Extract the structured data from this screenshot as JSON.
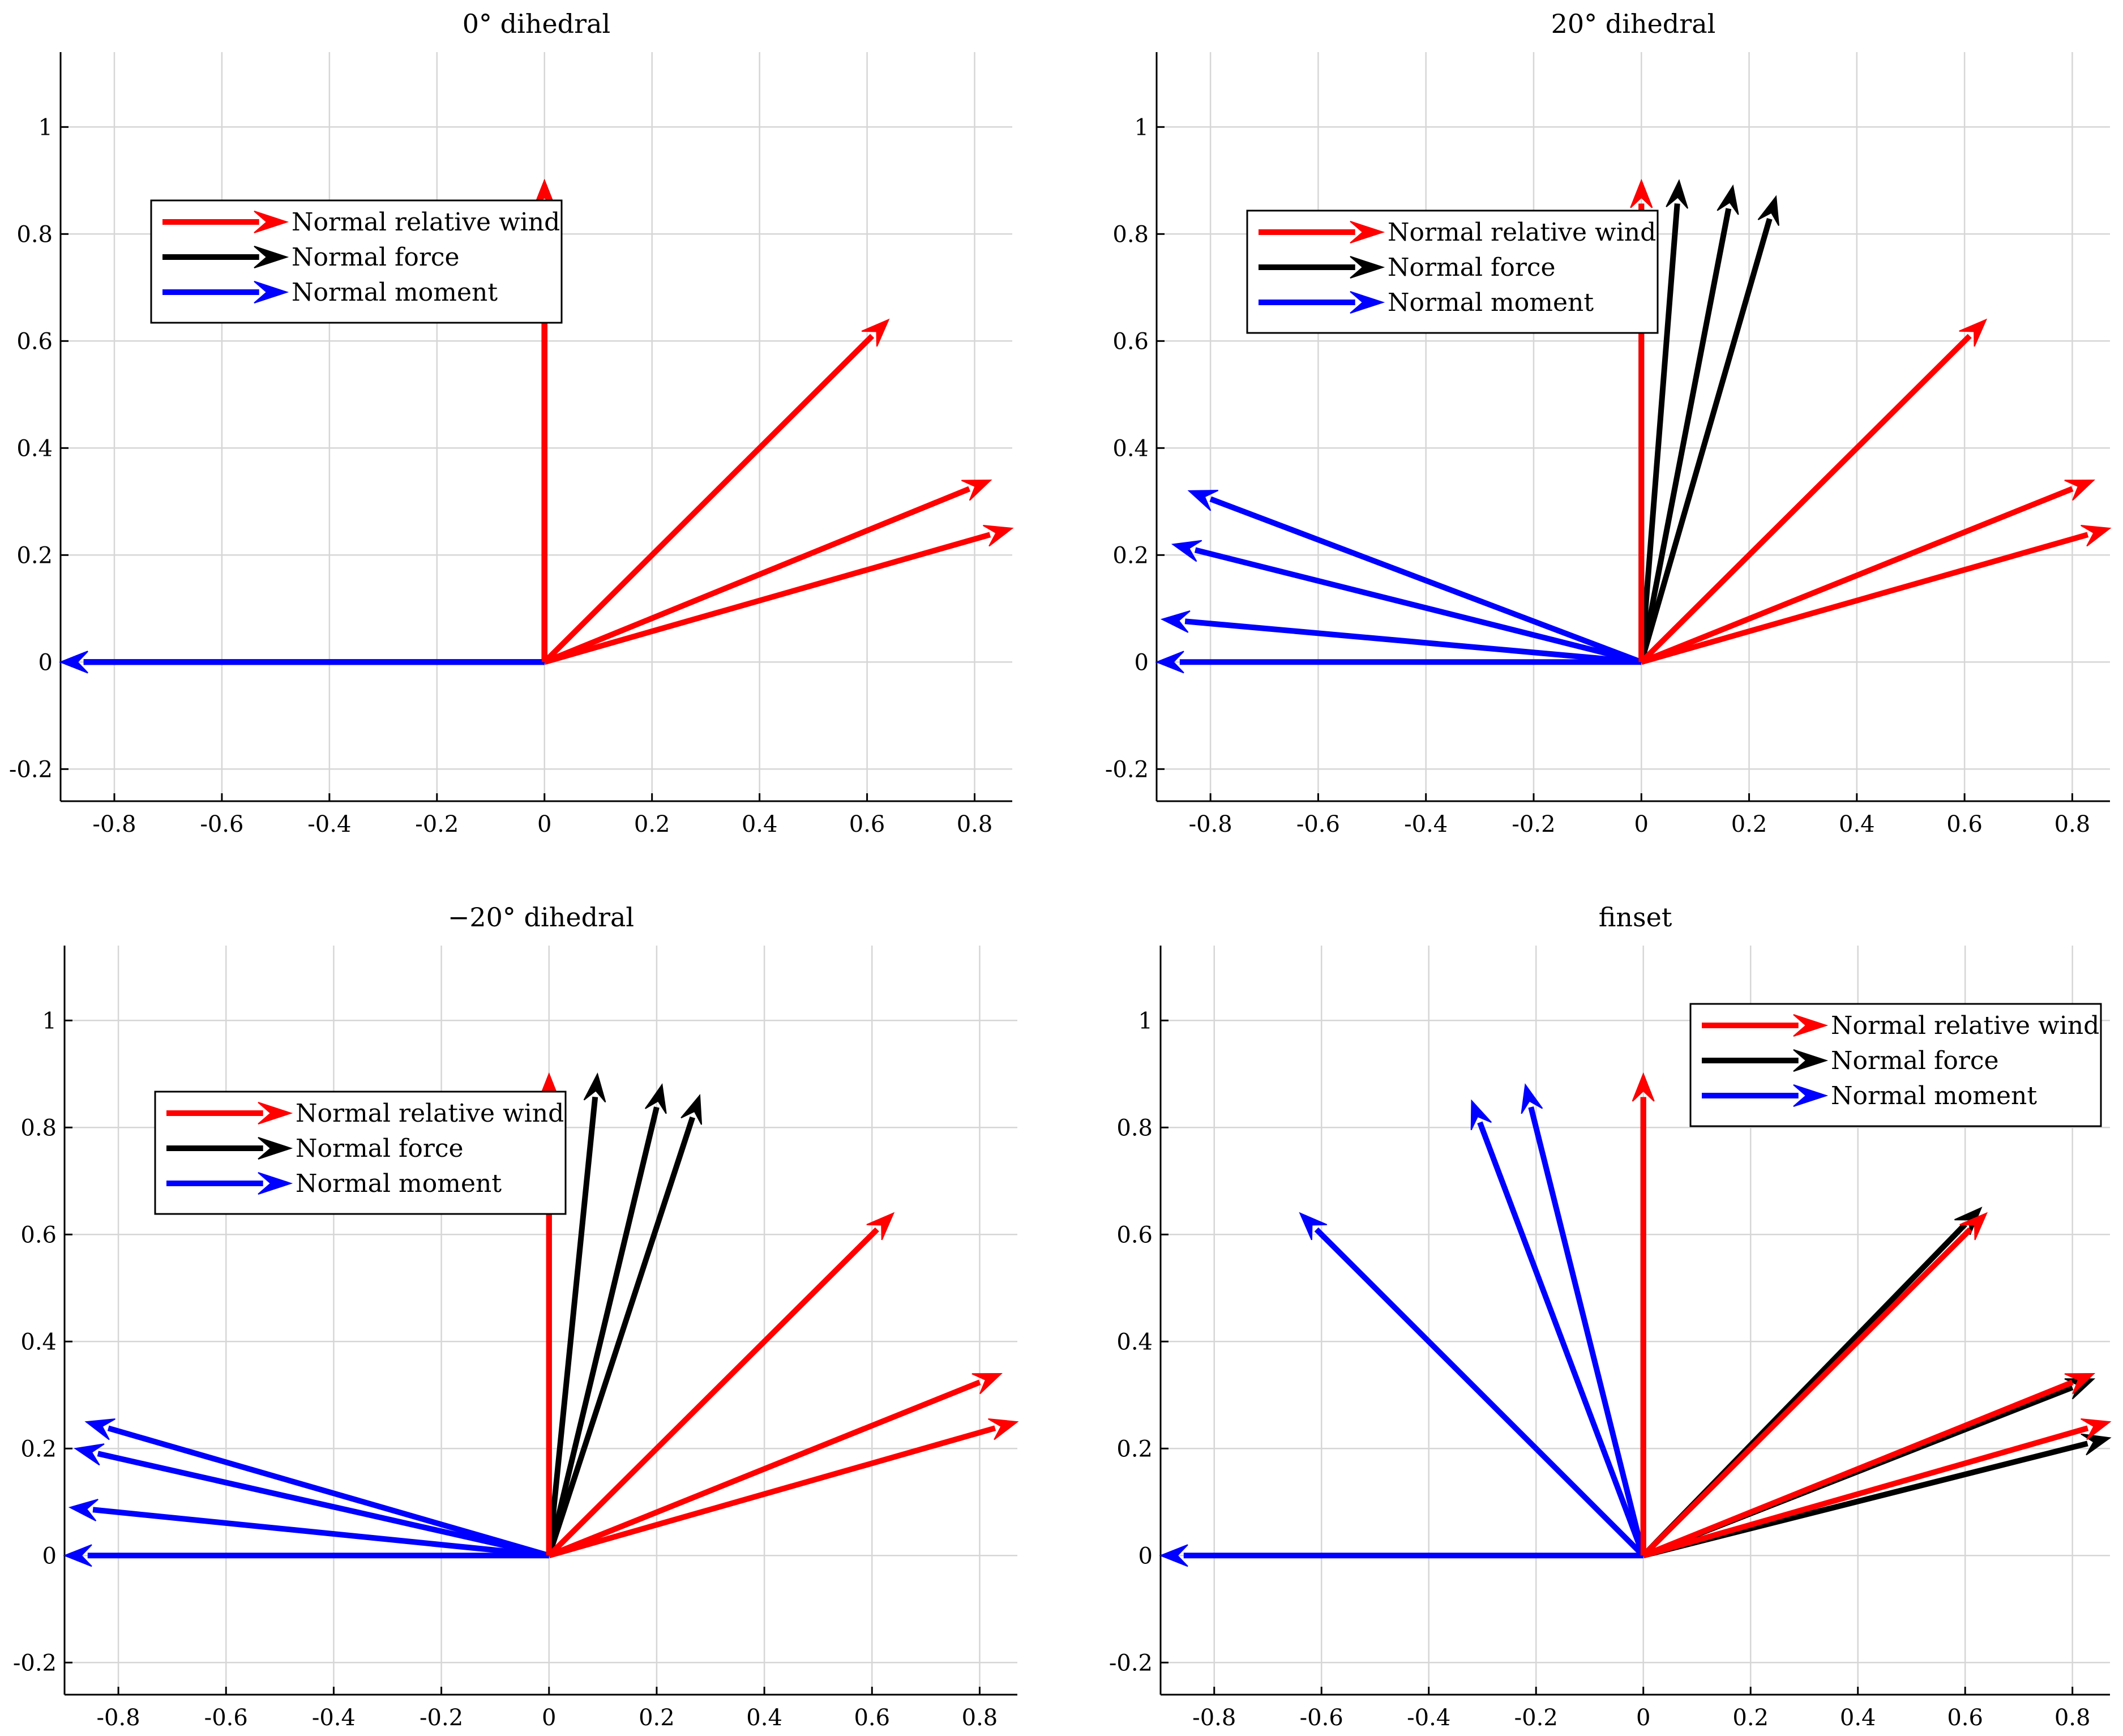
{
  "figure": {
    "background": "#ffffff"
  },
  "colors": {
    "relative_wind": "#ff0000",
    "force": "#000000",
    "moment": "#0000ff",
    "grid": "#d6d6d6"
  },
  "chart_data": [
    {
      "type": "quiver",
      "title": "0° dihedral",
      "xlim": [
        -0.9,
        0.87
      ],
      "ylim": [
        -0.26,
        1.14
      ],
      "xticks": [
        -0.8,
        -0.6,
        -0.4,
        -0.2,
        0,
        0.2,
        0.4,
        0.6,
        0.8
      ],
      "yticks": [
        -0.2,
        0,
        0.2,
        0.4,
        0.6,
        0.8,
        1
      ],
      "grid": true,
      "legend": {
        "location": "top-left",
        "entries": [
          "Normal relative wind",
          "Normal force",
          "Normal moment"
        ]
      },
      "series": [
        {
          "name": "Normal relative wind",
          "color": "#ff0000",
          "vectors": [
            [
              0,
              0.9
            ],
            [
              0.64,
              0.64
            ],
            [
              0.83,
              0.34
            ],
            [
              0.87,
              0.25
            ]
          ]
        },
        {
          "name": "Normal force",
          "color": "#000000",
          "vectors": [
            [
              0,
              0.9
            ],
            [
              0,
              0.9
            ],
            [
              0,
              0.9
            ],
            [
              0,
              0.9
            ]
          ]
        },
        {
          "name": "Normal moment",
          "color": "#0000ff",
          "vectors": [
            [
              -0.9,
              0
            ],
            [
              -0.9,
              0
            ],
            [
              -0.9,
              0
            ],
            [
              -0.9,
              0
            ]
          ]
        }
      ]
    },
    {
      "type": "quiver",
      "title": "20° dihedral",
      "xlim": [
        -0.9,
        0.87
      ],
      "ylim": [
        -0.26,
        1.14
      ],
      "xticks": [
        -0.8,
        -0.6,
        -0.4,
        -0.2,
        0,
        0.2,
        0.4,
        0.6,
        0.8
      ],
      "yticks": [
        -0.2,
        0,
        0.2,
        0.4,
        0.6,
        0.8,
        1
      ],
      "grid": true,
      "legend": {
        "location": "top-left",
        "entries": [
          "Normal relative wind",
          "Normal force",
          "Normal moment"
        ]
      },
      "series": [
        {
          "name": "Normal relative wind",
          "color": "#ff0000",
          "vectors": [
            [
              0,
              0.9
            ],
            [
              0.64,
              0.64
            ],
            [
              0.84,
              0.34
            ],
            [
              0.87,
              0.25
            ]
          ]
        },
        {
          "name": "Normal force",
          "color": "#000000",
          "vectors": [
            [
              0,
              0.9
            ],
            [
              0.07,
              0.9
            ],
            [
              0.17,
              0.89
            ],
            [
              0.25,
              0.87
            ]
          ]
        },
        {
          "name": "Normal moment",
          "color": "#0000ff",
          "vectors": [
            [
              -0.9,
              0
            ],
            [
              -0.89,
              0.08
            ],
            [
              -0.87,
              0.22
            ],
            [
              -0.84,
              0.32
            ]
          ]
        }
      ]
    },
    {
      "type": "quiver",
      "title": "−20° dihedral",
      "xlim": [
        -0.9,
        0.87
      ],
      "ylim": [
        -0.26,
        1.14
      ],
      "xticks": [
        -0.8,
        -0.6,
        -0.4,
        -0.2,
        0,
        0.2,
        0.4,
        0.6,
        0.8
      ],
      "yticks": [
        -0.2,
        0,
        0.2,
        0.4,
        0.6,
        0.8,
        1
      ],
      "grid": true,
      "legend": {
        "location": "top-left",
        "entries": [
          "Normal relative wind",
          "Normal force",
          "Normal moment"
        ]
      },
      "series": [
        {
          "name": "Normal relative wind",
          "color": "#ff0000",
          "vectors": [
            [
              0,
              0.9
            ],
            [
              0.64,
              0.64
            ],
            [
              0.84,
              0.34
            ],
            [
              0.87,
              0.25
            ]
          ]
        },
        {
          "name": "Normal force",
          "color": "#000000",
          "vectors": [
            [
              0,
              0.9
            ],
            [
              0.09,
              0.9
            ],
            [
              0.21,
              0.88
            ],
            [
              0.28,
              0.86
            ]
          ]
        },
        {
          "name": "Normal moment",
          "color": "#0000ff",
          "vectors": [
            [
              -0.9,
              0
            ],
            [
              -0.89,
              0.09
            ],
            [
              -0.88,
              0.2
            ],
            [
              -0.86,
              0.25
            ]
          ]
        }
      ]
    },
    {
      "type": "quiver",
      "title": "finset",
      "xlim": [
        -0.9,
        0.87
      ],
      "ylim": [
        -0.26,
        1.14
      ],
      "xticks": [
        -0.8,
        -0.6,
        -0.4,
        -0.2,
        0,
        0.2,
        0.4,
        0.6,
        0.8
      ],
      "yticks": [
        -0.2,
        0,
        0.2,
        0.4,
        0.6,
        0.8,
        1
      ],
      "grid": true,
      "legend": {
        "location": "top-right",
        "entries": [
          "Normal relative wind",
          "Normal force",
          "Normal moment"
        ]
      },
      "series": [
        {
          "name": "Normal relative wind",
          "color": "#ff0000",
          "vectors": [
            [
              0,
              0.9
            ],
            [
              0.64,
              0.64
            ],
            [
              0.84,
              0.34
            ],
            [
              0.87,
              0.25
            ]
          ]
        },
        {
          "name": "Normal force",
          "color": "#000000",
          "vectors": [
            [
              0,
              0.9
            ],
            [
              0.63,
              0.65
            ],
            [
              0.84,
              0.33
            ],
            [
              0.87,
              0.22
            ]
          ]
        },
        {
          "name": "Normal moment",
          "color": "#0000ff",
          "vectors": [
            [
              -0.9,
              0
            ],
            [
              -0.64,
              0.64
            ],
            [
              -0.32,
              0.85
            ],
            [
              -0.22,
              0.88
            ]
          ]
        }
      ]
    }
  ]
}
